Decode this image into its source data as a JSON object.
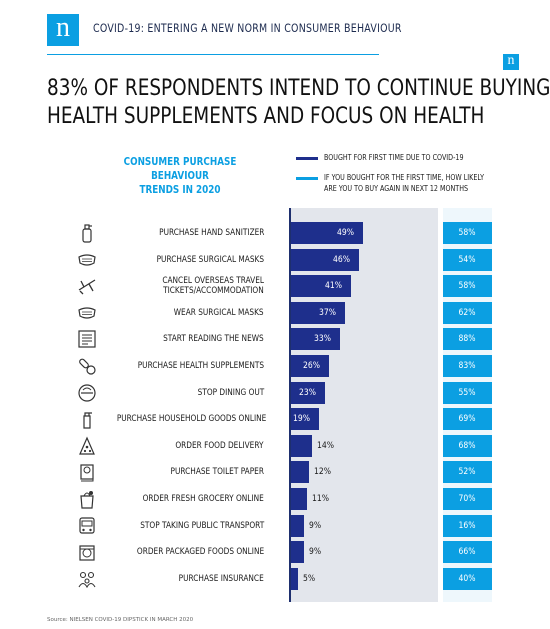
{
  "header": {
    "logo_letter": "n",
    "title": "COVID-19: ENTERING A NEW NORM IN CONSUMER BEHAVIOUR",
    "small_logo_letter": "n",
    "brand_color": "#0b9fe2"
  },
  "title_lines": [
    "83% OF RESPONDENTS INTEND TO CONTINUE BUYING",
    "HEALTH SUPPLEMENTS AND FOCUS ON HEALTH"
  ],
  "subtitle_lines": [
    "CONSUMER PURCHASE BEHAVIOUR",
    "TRENDS IN 2020"
  ],
  "legend": [
    {
      "label_lines": [
        "BOUGHT FOR FIRST TIME DUE TO COVID-19"
      ],
      "color": "#1e2f8c"
    },
    {
      "label_lines": [
        "IF YOU BOUGHT FOR THE FIRST TIME, HOW LIKELY",
        "ARE YOU TO BUY AGAIN IN NEXT 12 MONTHS"
      ],
      "color": "#0b9fe2"
    }
  ],
  "chart_data": {
    "type": "bar",
    "orientation": "horizontal",
    "categories": [
      "PURCHASE HAND SANITIZER",
      "PURCHASE SURGICAL MASKS",
      "CANCEL OVERSEAS TRAVEL TICKETS/ACCOMMODATION",
      "WEAR SURGICAL MASKS",
      "START READING THE NEWS",
      "PURCHASE HEALTH SUPPLEMENTS",
      "STOP DINING OUT",
      "PURCHASE HOUSEHOLD GOODS ONLINE",
      "ORDER FOOD DELIVERY",
      "PURCHASE TOILET PAPER",
      "ORDER FRESH GROCERY ONLINE",
      "STOP TAKING PUBLIC TRANSPORT",
      "ORDER PACKAGED FOODS ONLINE",
      "PURCHASE INSURANCE"
    ],
    "category_lines": [
      [
        "PURCHASE HAND SANITIZER"
      ],
      [
        "PURCHASE SURGICAL MASKS"
      ],
      [
        "CANCEL OVERSEAS TRAVEL",
        "TICKETS/ACCOMMODATION"
      ],
      [
        "WEAR SURGICAL MASKS"
      ],
      [
        "START READING THE NEWS"
      ],
      [
        "PURCHASE HEALTH SUPPLEMENTS"
      ],
      [
        "STOP DINING OUT"
      ],
      [
        "PURCHASE HOUSEHOLD GOODS ONLINE"
      ],
      [
        "ORDER FOOD DELIVERY"
      ],
      [
        "PURCHASE TOILET PAPER"
      ],
      [
        "ORDER FRESH GROCERY ONLINE"
      ],
      [
        "STOP TAKING PUBLIC TRANSPORT"
      ],
      [
        "ORDER PACKAGED FOODS ONLINE"
      ],
      [
        "PURCHASE INSURANCE"
      ]
    ],
    "icons": [
      "hand-sanitizer-icon",
      "surgical-mask-icon",
      "airplane-icon",
      "surgical-mask-icon",
      "newspaper-icon",
      "pills-icon",
      "no-dining-icon",
      "household-bottle-icon",
      "pizza-icon",
      "toilet-paper-icon",
      "grocery-bag-icon",
      "bus-icon",
      "packaged-food-icon",
      "family-insurance-icon"
    ],
    "series": [
      {
        "name": "BOUGHT FOR FIRST TIME DUE TO COVID-19",
        "values": [
          49,
          46,
          41,
          37,
          33,
          26,
          23,
          19,
          14,
          12,
          11,
          9,
          9,
          5
        ],
        "labels": [
          "49%",
          "46%",
          "41%",
          "37%",
          "33%",
          "26%",
          "23%",
          "19%",
          "14%",
          "12%",
          "11%",
          "9%",
          "9%",
          "5%"
        ],
        "color": "#1e2f8c"
      },
      {
        "name": "IF YOU BOUGHT FOR THE FIRST TIME, HOW LIKELY ARE YOU TO BUY AGAIN IN NEXT 12 MONTHS",
        "values": [
          58,
          54,
          58,
          62,
          88,
          83,
          55,
          69,
          68,
          52,
          70,
          16,
          66,
          40
        ],
        "labels": [
          "58%",
          "54%",
          "58%",
          "62%",
          "88%",
          "83%",
          "55%",
          "69%",
          "68%",
          "52%",
          "70%",
          "16%",
          "66%",
          "40%"
        ],
        "color": "#0b9fe2"
      }
    ],
    "xlim": [
      0,
      100
    ]
  },
  "source": "Source: NIELSEN COVID-19 DIPSTICK IN MARCH 2020"
}
